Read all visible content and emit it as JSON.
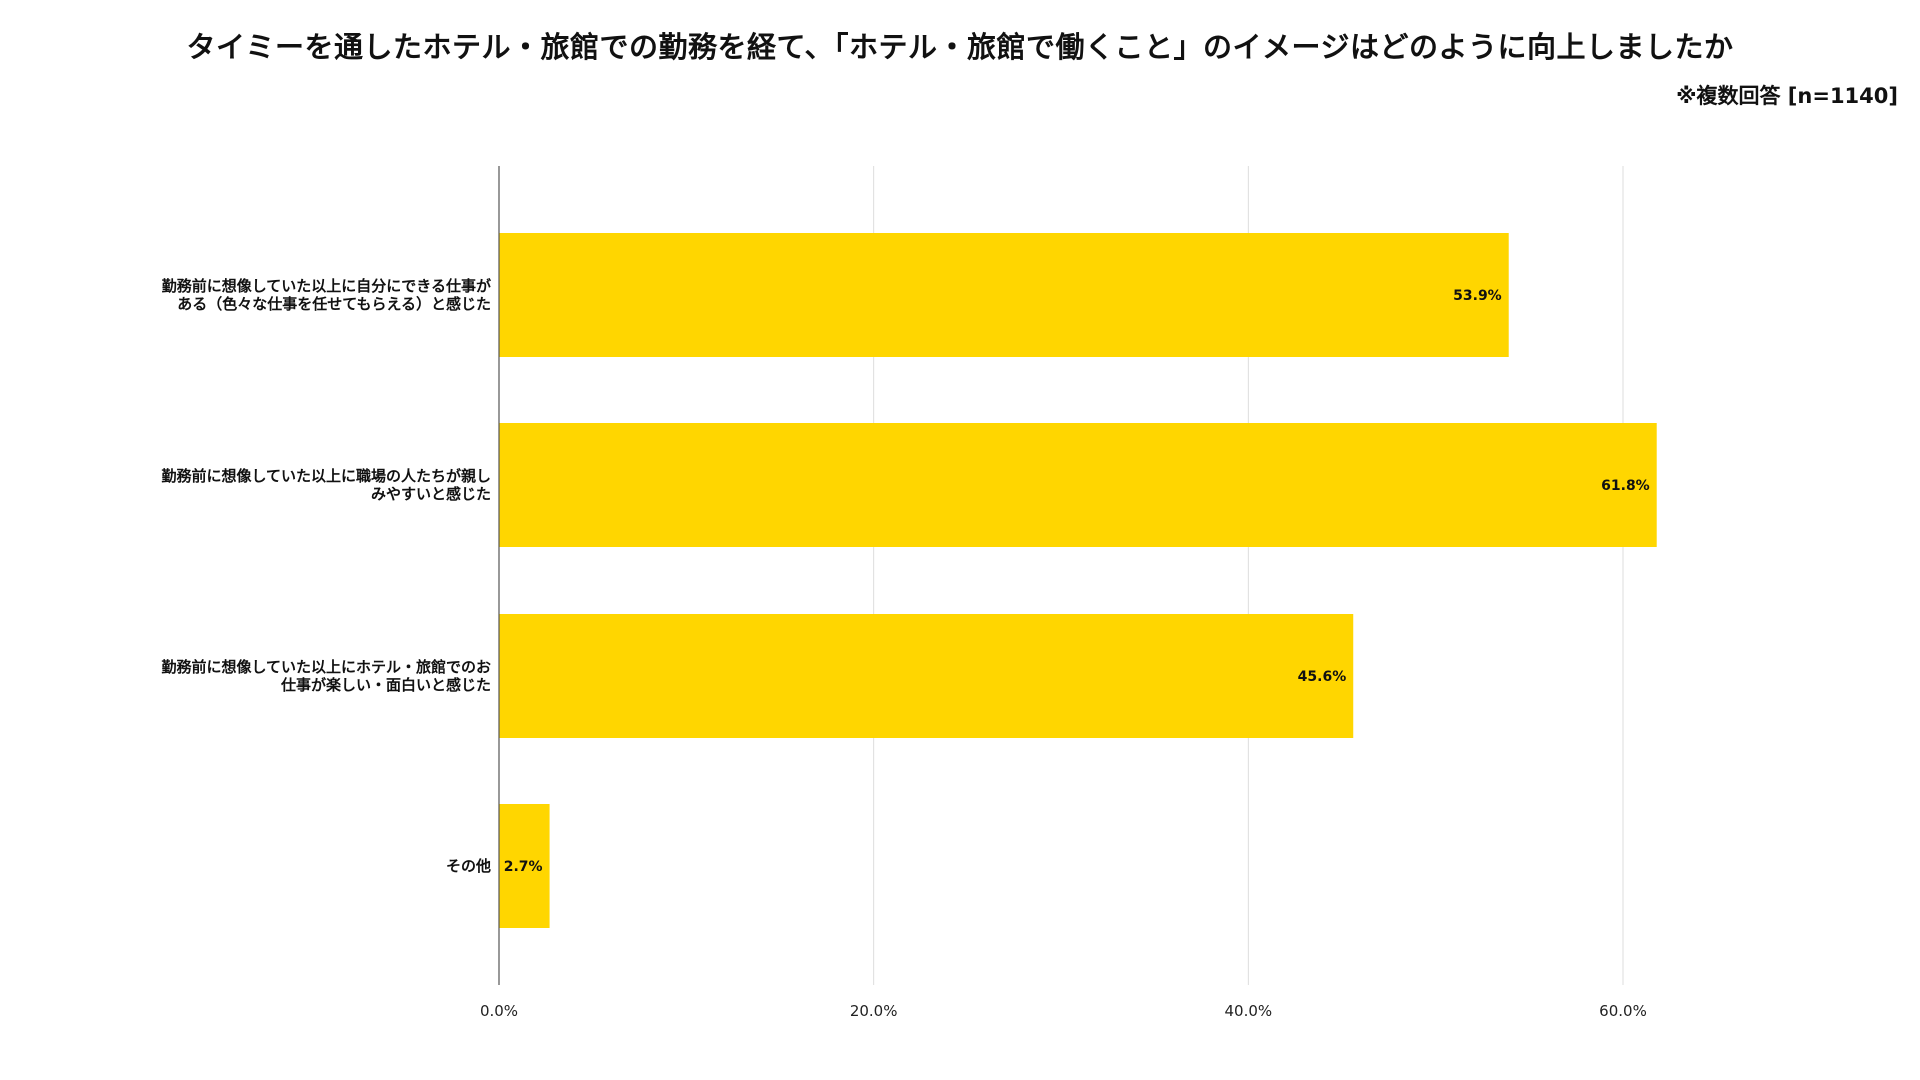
{
  "chart_data": {
    "type": "bar",
    "orientation": "horizontal",
    "title": "タイミーを通したホテル・旅館での勤務を経て、「ホテル・旅館で働くこと」のイメージはどのように向上しましたか",
    "note": "※複数回答 [n=1140]",
    "categories": [
      [
        "勤務前に想像していた以上に自分にできる仕事が",
        "ある（色々な仕事を任せてもらえる）と感じた"
      ],
      [
        "勤務前に想像していた以上に職場の人たちが親し",
        "みやすいと感じた"
      ],
      [
        "勤務前に想像していた以上にホテル・旅館でのお",
        "仕事が楽しい・面白いと感じた"
      ],
      [
        "その他"
      ]
    ],
    "values": [
      53.9,
      61.8,
      45.6,
      2.7
    ],
    "value_labels": [
      "53.9%",
      "61.8%",
      "45.6%",
      "2.7%"
    ],
    "xticks": [
      "0.0%",
      "20.0%",
      "40.0%",
      "60.0%"
    ],
    "xtick_values": [
      0,
      20,
      40,
      60
    ],
    "xlim": [
      0,
      70
    ],
    "grid": true,
    "legend": "none",
    "colors": {
      "bar": "#FFD600",
      "grid": "#DDDDDD",
      "axis": "#555555"
    }
  }
}
